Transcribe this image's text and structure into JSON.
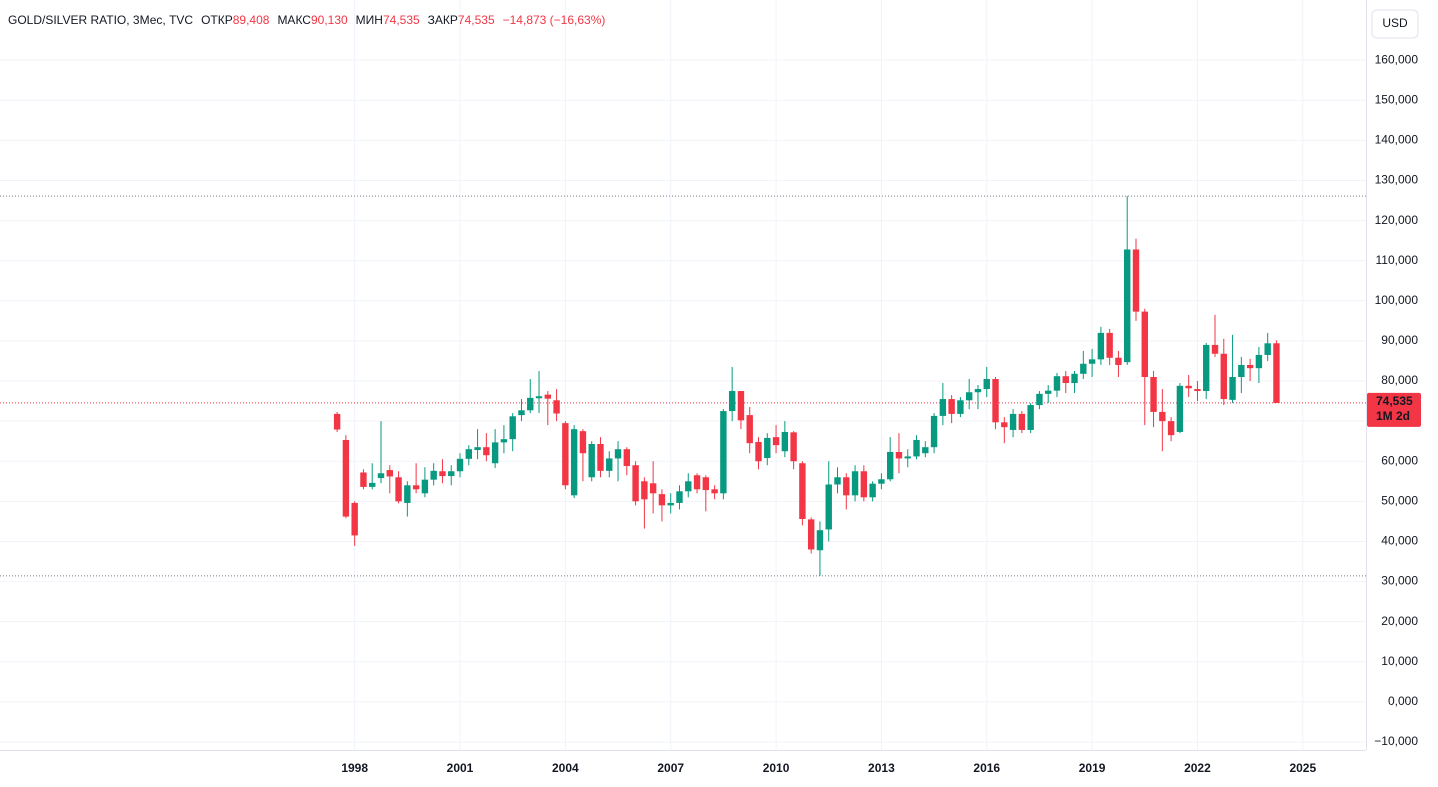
{
  "chart_data": {
    "type": "candlestick",
    "title": "GOLD/SILVER RATIO, 3Мес, TVC",
    "ohlc_header": [
      {
        "label": "ОТКР",
        "value": "89,408"
      },
      {
        "label": "МАКС",
        "value": "90,130"
      },
      {
        "label": "МИН",
        "value": "74,535"
      },
      {
        "label": "ЗАКР",
        "value": "74,535"
      }
    ],
    "change": "−14,873 (−16,63%)",
    "currency": "USD",
    "last_price_label": "74,535",
    "countdown": "1M 2d",
    "up_color": "#089981",
    "down_color": "#f23645",
    "grid": true,
    "xlim": [
      1987.9,
      2026.8
    ],
    "xticks": [
      1998,
      2001,
      2004,
      2007,
      2010,
      2013,
      2016,
      2019,
      2022,
      2025
    ],
    "ylim": [
      -12,
      175
    ],
    "yticks": [
      {
        "value": 160,
        "label": "160,000"
      },
      {
        "value": 150,
        "label": "150,000"
      },
      {
        "value": 140,
        "label": "140,000"
      },
      {
        "value": 130,
        "label": "130,000"
      },
      {
        "value": 120,
        "label": "120,000"
      },
      {
        "value": 110,
        "label": "110,000"
      },
      {
        "value": 100,
        "label": "100,000"
      },
      {
        "value": 90,
        "label": "90,000"
      },
      {
        "value": 80,
        "label": "80,000"
      },
      {
        "value": 70,
        "label": "70,000"
      },
      {
        "value": 60,
        "label": "60,000"
      },
      {
        "value": 50,
        "label": "50,000"
      },
      {
        "value": 40,
        "label": "40,000"
      },
      {
        "value": 30,
        "label": "30,000"
      },
      {
        "value": 20,
        "label": "20,000"
      },
      {
        "value": 10,
        "label": "10,000"
      },
      {
        "value": 0,
        "label": "0,000"
      },
      {
        "value": -10,
        "label": "−10,000"
      }
    ],
    "x": [
      1997.5,
      1997.75,
      1998,
      1998.25,
      1998.5,
      1998.75,
      1999,
      1999.25,
      1999.5,
      1999.75,
      2000,
      2000.25,
      2000.5,
      2000.75,
      2001,
      2001.25,
      2001.5,
      2001.75,
      2002,
      2002.25,
      2002.5,
      2002.75,
      2003,
      2003.25,
      2003.5,
      2003.75,
      2004,
      2004.25,
      2004.5,
      2004.75,
      2005,
      2005.25,
      2005.5,
      2005.75,
      2006,
      2006.25,
      2006.5,
      2006.75,
      2007,
      2007.25,
      2007.5,
      2007.75,
      2008,
      2008.25,
      2008.5,
      2008.75,
      2009,
      2009.25,
      2009.5,
      2009.75,
      2010,
      2010.25,
      2010.5,
      2010.75,
      2011,
      2011.25,
      2011.5,
      2011.75,
      2012,
      2012.25,
      2012.5,
      2012.75,
      2013,
      2013.25,
      2013.5,
      2013.75,
      2014,
      2014.25,
      2014.5,
      2014.75,
      2015,
      2015.25,
      2015.5,
      2015.75,
      2016,
      2016.25,
      2016.5,
      2016.75,
      2017,
      2017.25,
      2017.5,
      2017.75,
      2018,
      2018.25,
      2018.5,
      2018.75,
      2019,
      2019.25,
      2019.5,
      2019.75,
      2020,
      2020.25,
      2020.5,
      2020.75,
      2021,
      2021.25,
      2021.5,
      2021.75,
      2022,
      2022.25,
      2022.5,
      2022.75,
      2023,
      2023.25,
      2023.5,
      2023.75,
      2024,
      2024.25
    ],
    "open": [
      71.8,
      65.3,
      49.6,
      57.2,
      53.6,
      55.8,
      57.8,
      56,
      49.6,
      54,
      52,
      55.4,
      57.5,
      56.3,
      57.5,
      60.6,
      62.8,
      63.5,
      59.5,
      64.7,
      65.5,
      71.5,
      72.7,
      75.7,
      76.6,
      75.2,
      69.5,
      51.5,
      67.5,
      56,
      64.3,
      57.6,
      60.7,
      63,
      59,
      55,
      54.5,
      51.8,
      49,
      49.6,
      52.5,
      56.5,
      56,
      53,
      52,
      72.5,
      77.5,
      71.5,
      64.8,
      60.8,
      66,
      62.5,
      67.2,
      59.5,
      45.5,
      37.8,
      43,
      54.2,
      56,
      51.5,
      57.5,
      51,
      54.4,
      55.5,
      62.3,
      60.7,
      61.2,
      62,
      63.5,
      71.3,
      75.5,
      71.8,
      75.2,
      77.2,
      78,
      80.5,
      69.7,
      67.8,
      71.8,
      67.8,
      74,
      76.8,
      77.6,
      81.2,
      79.5,
      81.8,
      84.3,
      85.4,
      92,
      85.8,
      84.7,
      112.8,
      97.3,
      81,
      72.3,
      70,
      67.3,
      78.8,
      78,
      77.5,
      89,
      86.8,
      75.3,
      81,
      84,
      83.2,
      86.5,
      89.408
    ],
    "high": [
      72.3,
      66.5,
      50,
      58,
      59.5,
      70,
      59,
      57.5,
      55,
      59.5,
      58.5,
      59.5,
      60.5,
      59,
      62,
      64,
      68,
      67,
      68,
      69,
      72,
      75.5,
      80.5,
      82.5,
      77.5,
      78,
      70,
      69,
      68,
      65,
      66,
      62.5,
      65,
      63.5,
      60,
      56,
      60,
      53,
      52,
      54,
      57,
      57,
      56.5,
      54,
      73,
      83.5,
      77.5,
      73.5,
      66,
      67,
      69,
      70,
      67.5,
      60,
      46,
      45,
      60,
      58.5,
      57,
      59,
      59,
      55,
      57,
      66,
      67,
      63,
      66.5,
      65,
      72,
      79.5,
      76.5,
      76,
      80.5,
      79,
      83.5,
      81,
      71,
      73,
      72.5,
      74.5,
      77.5,
      79,
      82,
      82.5,
      82.5,
      87.5,
      88,
      93.5,
      93,
      87.5,
      126.1,
      115.5,
      98,
      82.5,
      78,
      71,
      79.5,
      81.5,
      80,
      89.5,
      96.5,
      90.5,
      91.5,
      86,
      85.5,
      88.5,
      92,
      90.13
    ],
    "low": [
      67.3,
      45.8,
      38.9,
      53,
      53,
      54.5,
      52,
      49.5,
      46.2,
      52,
      51,
      54,
      54.5,
      54,
      56,
      59,
      60.5,
      60,
      58.3,
      62,
      62.5,
      70,
      72,
      72,
      69,
      70,
      53,
      50.8,
      55,
      55,
      56,
      56,
      55,
      56.5,
      49,
      43.2,
      47,
      45,
      47,
      48,
      51,
      52,
      47.5,
      50.5,
      50.5,
      70,
      68,
      62,
      58,
      59,
      62,
      61,
      58,
      44,
      37,
      31.4,
      40,
      52,
      48,
      50,
      50,
      50,
      53,
      55,
      57,
      58.5,
      60.5,
      61,
      62,
      69,
      69.5,
      71,
      73,
      73,
      76,
      68,
      64.5,
      66,
      67,
      67,
      73,
      74.5,
      76,
      77,
      77,
      80.5,
      81,
      84,
      84,
      81,
      84,
      95,
      69,
      68.5,
      62.5,
      65,
      67,
      76,
      75,
      75.5,
      86,
      74,
      74.5,
      77,
      80,
      79.5,
      85,
      74.535
    ],
    "close": [
      67.9,
      46.2,
      41.5,
      53.6,
      54.6,
      57,
      56.2,
      50,
      54,
      53,
      55.4,
      57.6,
      56.3,
      57.5,
      60.6,
      63,
      63.5,
      61.5,
      64.7,
      65.5,
      71.2,
      72.7,
      75.8,
      76.2,
      75.6,
      71.9,
      54,
      68,
      62,
      64.3,
      57.6,
      60.7,
      63,
      58.8,
      50,
      50.5,
      52,
      49,
      49.6,
      52.5,
      55,
      53,
      52.8,
      52,
      72.5,
      77.5,
      70.2,
      64.5,
      60,
      65.8,
      64,
      67.3,
      60,
      45.6,
      38,
      42.8,
      54.2,
      56,
      51.5,
      57.5,
      51,
      54.4,
      55.5,
      62.3,
      60.7,
      61.2,
      65.3,
      63.5,
      71.3,
      75.5,
      71.8,
      75.2,
      77.2,
      78,
      80.5,
      69.7,
      68.5,
      71.8,
      67.8,
      74,
      76.8,
      77.6,
      81.2,
      79.5,
      81.8,
      84.3,
      85.4,
      92,
      85.8,
      84,
      112.8,
      97.3,
      81,
      72.3,
      70,
      66.5,
      78.8,
      78.2,
      77.5,
      89,
      86.8,
      75.5,
      81,
      84,
      83.2,
      86.5,
      89.4,
      74.535
    ]
  }
}
